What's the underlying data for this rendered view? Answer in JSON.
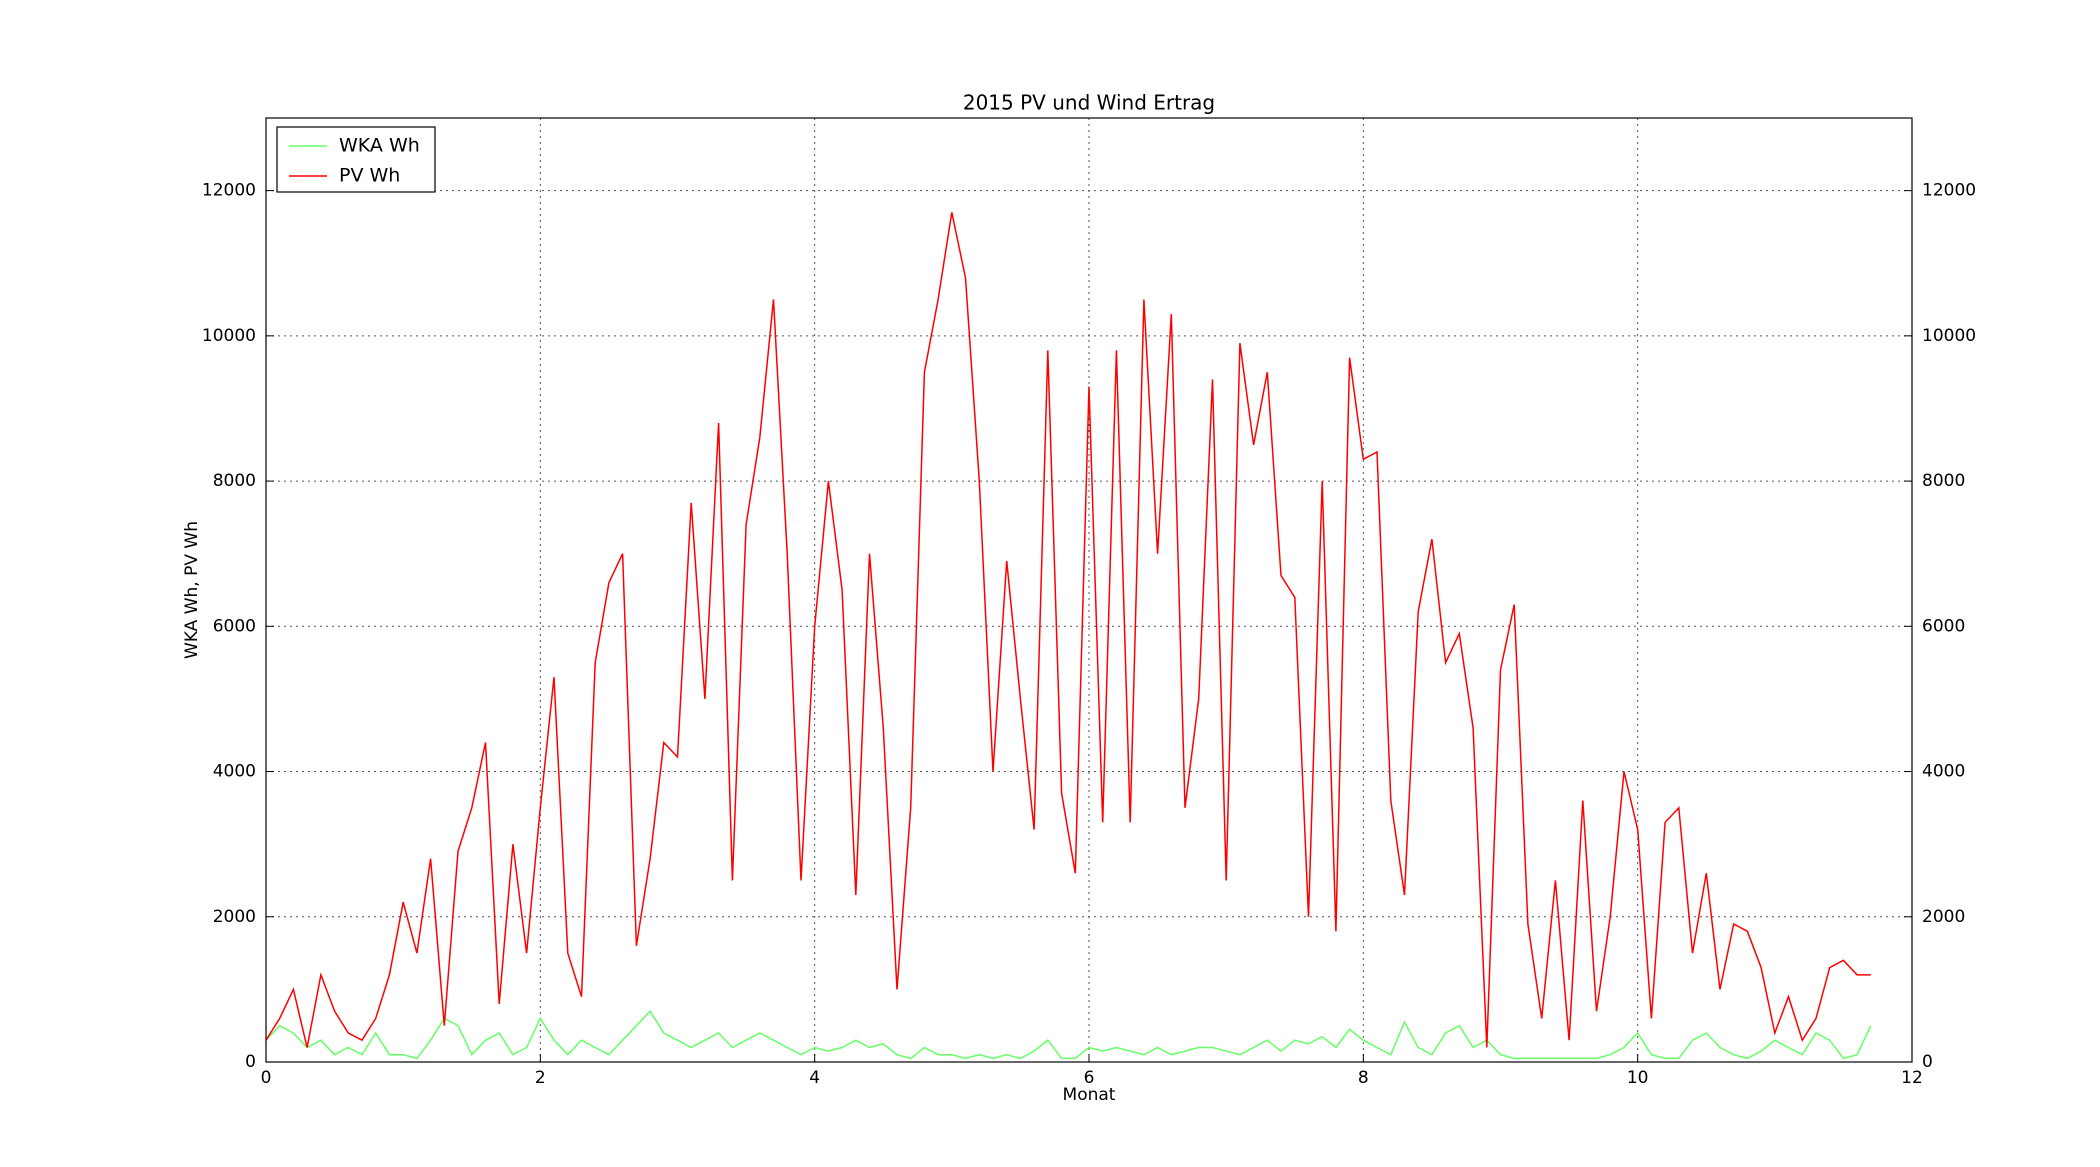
{
  "chart_data": {
    "type": "line",
    "title": "2015 PV und Wind Ertrag",
    "x_label": "Monat",
    "y_label": "WKA Wh, PV Wh",
    "x": [
      0,
      0.1,
      0.2,
      0.3,
      0.4,
      0.5,
      0.6,
      0.7,
      0.8,
      0.9,
      1,
      1.1,
      1.2,
      1.3,
      1.4,
      1.5,
      1.6,
      1.7,
      1.8,
      1.9,
      2,
      2.1,
      2.2,
      2.3,
      2.4,
      2.5,
      2.6,
      2.7,
      2.8,
      2.9,
      3,
      3.1,
      3.2,
      3.3,
      3.4,
      3.5,
      3.6,
      3.7,
      3.8,
      3.9,
      4,
      4.1,
      4.2,
      4.3,
      4.4,
      4.5,
      4.6,
      4.7,
      4.8,
      4.9,
      5,
      5.1,
      5.2,
      5.3,
      5.4,
      5.5,
      5.6,
      5.7,
      5.8,
      5.9,
      6,
      6.1,
      6.2,
      6.3,
      6.4,
      6.5,
      6.6,
      6.7,
      6.8,
      6.9,
      7,
      7.1,
      7.2,
      7.3,
      7.4,
      7.5,
      7.6,
      7.7,
      7.8,
      7.9,
      8,
      8.1,
      8.2,
      8.3,
      8.4,
      8.5,
      8.6,
      8.7,
      8.8,
      8.9,
      9,
      9.1,
      9.2,
      9.3,
      9.4,
      9.5,
      9.6,
      9.7,
      9.8,
      9.9,
      10,
      10.1,
      10.2,
      10.3,
      10.4,
      10.5,
      10.6,
      10.7,
      10.8,
      10.9,
      11,
      11.1,
      11.2,
      11.3,
      11.4,
      11.5,
      11.6,
      11.7
    ],
    "series": [
      {
        "name": "WKA Wh",
        "color": "#66ff66",
        "values": [
          300,
          500,
          400,
          200,
          300,
          100,
          200,
          100,
          400,
          100,
          100,
          50,
          300,
          600,
          500,
          100,
          300,
          400,
          100,
          200,
          600,
          300,
          100,
          300,
          200,
          100,
          300,
          500,
          700,
          400,
          300,
          200,
          300,
          400,
          200,
          300,
          400,
          300,
          200,
          100,
          200,
          150,
          200,
          300,
          200,
          250,
          100,
          50,
          200,
          100,
          100,
          50,
          100,
          50,
          100,
          50,
          150,
          300,
          50,
          50,
          200,
          150,
          200,
          150,
          100,
          200,
          100,
          150,
          200,
          200,
          150,
          100,
          200,
          300,
          150,
          300,
          250,
          350,
          200,
          450,
          300,
          200,
          100,
          550,
          200,
          100,
          400,
          500,
          200,
          300,
          100,
          50,
          50,
          50,
          50,
          50,
          50,
          50,
          100,
          200,
          400,
          100,
          50,
          50,
          300,
          400,
          200,
          100,
          50,
          150,
          300,
          200,
          100,
          400,
          300,
          50,
          100,
          500
        ]
      },
      {
        "name": "PV Wh",
        "color": "#ff0000",
        "values": [
          300,
          600,
          1000,
          200,
          1200,
          700,
          400,
          300,
          600,
          1200,
          2200,
          1500,
          2800,
          500,
          2900,
          3500,
          4400,
          800,
          3000,
          1500,
          3500,
          5300,
          1500,
          900,
          5500,
          6600,
          7000,
          1600,
          2800,
          4400,
          4200,
          7700,
          5000,
          8800,
          2500,
          7400,
          8600,
          10500,
          7000,
          2500,
          6000,
          8000,
          6500,
          2300,
          7000,
          4600,
          1000,
          3500,
          9500,
          10500,
          11700,
          10800,
          8000,
          4000,
          6900,
          5000,
          3200,
          9800,
          3700,
          2600,
          9300,
          3300,
          9800,
          3300,
          10500,
          7000,
          10300,
          3500,
          5000,
          9400,
          2500,
          9900,
          8500,
          9500,
          6700,
          6400,
          2000,
          8000,
          1800,
          9700,
          8300,
          8400,
          3600,
          2300,
          6200,
          7200,
          5500,
          5900,
          4600,
          200,
          5400,
          6300,
          1900,
          600,
          2500,
          300,
          3600,
          700,
          2000,
          4000,
          3200,
          600,
          3300,
          3500,
          1500,
          2600,
          1000,
          1900,
          1800,
          1300,
          400,
          900,
          300,
          600,
          1300,
          1400,
          1200,
          1200
        ]
      }
    ],
    "xlim": [
      0,
      12
    ],
    "xticks": [
      0,
      2,
      4,
      6,
      8,
      10,
      12
    ],
    "ylim": [
      0,
      13000
    ],
    "yticks": [
      0,
      2000,
      4000,
      6000,
      8000,
      10000,
      12000
    ],
    "y2lim": [
      0,
      13000
    ],
    "y2ticks": [
      0,
      2000,
      4000,
      6000,
      8000,
      10000,
      12000
    ],
    "grid": true,
    "legend": "upper left"
  }
}
